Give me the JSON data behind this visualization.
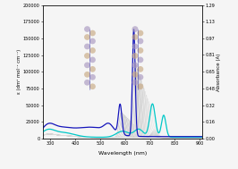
{
  "xlabel": "Wavelength (nm)",
  "ylabel_left": "ε (dm³ mol⁻¹ cm⁻¹)",
  "ylabel_right": "Absorbance (A)",
  "xlim": [
    270,
    910
  ],
  "ylim_left": [
    0,
    200000
  ],
  "ylim_right": [
    0,
    1.29
  ],
  "yticks_left": [
    0,
    25000,
    50000,
    75000,
    100000,
    125000,
    150000,
    175000,
    200000
  ],
  "yticks_right": [
    0.0,
    0.16,
    0.32,
    0.48,
    0.65,
    0.81,
    0.97,
    1.13,
    1.29
  ],
  "ytick_labels_left": [
    "0",
    "25000",
    "50000",
    "75000",
    "100000",
    "125000",
    "150000",
    "175000",
    "200000"
  ],
  "ytick_labels_right": [
    "0.00",
    "0.16",
    "0.32",
    "0.48",
    "0.65",
    "0.81",
    "0.97",
    "1.13",
    "1.29"
  ],
  "blue_color": "#1515BB",
  "cyan_color": "#00C8C8",
  "background_color": "#F5F5F5",
  "n_gray_lines": 14
}
